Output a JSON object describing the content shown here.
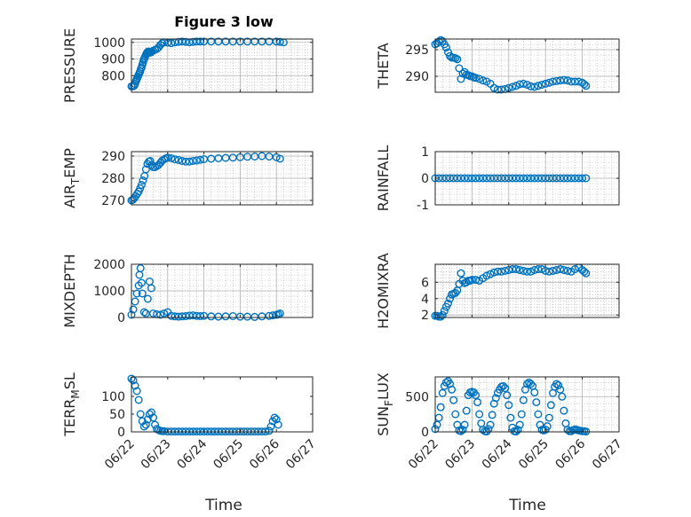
{
  "colors": {
    "marker": "#0072bd",
    "axis": "#262626",
    "grid": "#b0b0b0",
    "background": "#ffffff"
  },
  "figure": {
    "title": "Figure 3 low",
    "xlabel": "Time"
  },
  "chart_data": [
    {
      "type": "scatter",
      "id": "pressure",
      "title": "Figure 3 low",
      "ylabel": "PRESSURE",
      "xlabel": "",
      "xticks": [
        "06/22",
        "06/23",
        "06/24",
        "06/25",
        "06/26",
        "06/27"
      ],
      "show_xticks": false,
      "xlim": [
        0,
        5
      ],
      "ylim": [
        700,
        1020
      ],
      "yticks": [
        800,
        900,
        1000
      ],
      "grid": true,
      "minor_grid": true,
      "x": [
        0.0,
        0.04,
        0.08,
        0.1,
        0.12,
        0.14,
        0.16,
        0.18,
        0.2,
        0.22,
        0.24,
        0.26,
        0.28,
        0.3,
        0.32,
        0.34,
        0.36,
        0.38,
        0.4,
        0.42,
        0.44,
        0.46,
        0.48,
        0.5,
        0.52,
        0.54,
        0.56,
        0.6,
        0.65,
        0.7,
        0.75,
        0.8,
        0.85,
        0.9,
        1.0,
        1.1,
        1.2,
        1.3,
        1.4,
        1.5,
        1.6,
        1.7,
        1.8,
        1.9,
        2.0,
        2.2,
        2.4,
        2.6,
        2.8,
        3.0,
        3.2,
        3.4,
        3.6,
        3.8,
        4.0,
        4.1,
        4.2
      ],
      "y": [
        735,
        735,
        740,
        750,
        765,
        775,
        785,
        795,
        805,
        815,
        825,
        840,
        850,
        865,
        880,
        895,
        905,
        915,
        925,
        935,
        940,
        945,
        945,
        940,
        938,
        940,
        945,
        950,
        955,
        960,
        970,
        985,
        995,
        1000,
        998,
        995,
        1000,
        1003,
        1005,
        1003,
        1000,
        1003,
        1005,
        1005,
        1005,
        1005,
        1005,
        1005,
        1005,
        1005,
        1005,
        1005,
        1005,
        1005,
        1005,
        1003,
        1000
      ]
    },
    {
      "type": "scatter",
      "id": "theta",
      "title": "",
      "ylabel": "THETA",
      "xlabel": "",
      "xticks": [
        "06/22",
        "06/23",
        "06/24",
        "06/25",
        "06/26",
        "06/27"
      ],
      "show_xticks": false,
      "xlim": [
        0,
        5
      ],
      "ylim": [
        287,
        297
      ],
      "yticks": [
        290,
        295
      ],
      "grid": true,
      "minor_grid": true,
      "x": [
        0.0,
        0.05,
        0.1,
        0.15,
        0.2,
        0.25,
        0.3,
        0.35,
        0.4,
        0.45,
        0.5,
        0.55,
        0.6,
        0.65,
        0.7,
        0.75,
        0.8,
        0.85,
        0.9,
        0.95,
        1.0,
        1.05,
        1.1,
        1.2,
        1.3,
        1.4,
        1.5,
        1.6,
        1.7,
        1.8,
        1.9,
        2.0,
        2.1,
        2.2,
        2.3,
        2.4,
        2.5,
        2.6,
        2.7,
        2.8,
        2.9,
        3.0,
        3.1,
        3.2,
        3.3,
        3.4,
        3.5,
        3.6,
        3.7,
        3.8,
        3.9,
        4.0,
        4.05,
        4.1
      ],
      "y": [
        296,
        296.2,
        296.5,
        296.8,
        296.6,
        296,
        295.4,
        294.5,
        293.8,
        293.5,
        293.5,
        293.4,
        293.2,
        291.5,
        289.5,
        290.5,
        290.8,
        290.3,
        290.2,
        290,
        290,
        289.8,
        289.7,
        289.5,
        289.2,
        289.0,
        288.6,
        287.8,
        287.5,
        287.5,
        287.6,
        287.8,
        288.0,
        288.2,
        288.5,
        288.6,
        288.4,
        288.1,
        288.0,
        288.2,
        288.4,
        288.6,
        288.8,
        289.0,
        289.1,
        289.2,
        289.3,
        289.2,
        289.0,
        289.0,
        289.0,
        288.8,
        288.5,
        288.2
      ]
    },
    {
      "type": "scatter",
      "id": "air_temp",
      "title": "",
      "ylabel": "AIR_TEMP",
      "ylabel_main": "AIR",
      "ylabel_sub": "T",
      "ylabel_rest": "EMP",
      "xlabel": "",
      "xticks": [
        "06/22",
        "06/23",
        "06/24",
        "06/25",
        "06/26",
        "06/27"
      ],
      "show_xticks": false,
      "xlim": [
        0,
        5
      ],
      "ylim": [
        268,
        292
      ],
      "yticks": [
        270,
        280,
        290
      ],
      "grid": true,
      "minor_grid": true,
      "x": [
        0.0,
        0.04,
        0.08,
        0.12,
        0.16,
        0.2,
        0.24,
        0.28,
        0.32,
        0.36,
        0.4,
        0.44,
        0.48,
        0.52,
        0.56,
        0.6,
        0.65,
        0.7,
        0.75,
        0.8,
        0.85,
        0.9,
        0.95,
        1.0,
        1.1,
        1.2,
        1.3,
        1.4,
        1.5,
        1.6,
        1.7,
        1.8,
        1.9,
        2.0,
        2.2,
        2.4,
        2.6,
        2.8,
        3.0,
        3.2,
        3.4,
        3.6,
        3.8,
        4.0,
        4.1
      ],
      "y": [
        270,
        270.3,
        271,
        272,
        273,
        274,
        275.5,
        277,
        279,
        281,
        284,
        286.5,
        287.5,
        287.8,
        286,
        285,
        285,
        285.5,
        286,
        287,
        288,
        288.5,
        289,
        289.3,
        289,
        288.5,
        288.2,
        287.8,
        287.5,
        287.5,
        287.8,
        288,
        288.3,
        288.6,
        288.8,
        289,
        289.2,
        289.3,
        289.5,
        289.7,
        289.8,
        290,
        289.8,
        289.5,
        288.8
      ]
    },
    {
      "type": "scatter",
      "id": "rainfall",
      "title": "",
      "ylabel": "RAINFALL",
      "xlabel": "",
      "xticks": [
        "06/22",
        "06/23",
        "06/24",
        "06/25",
        "06/26",
        "06/27"
      ],
      "show_xticks": false,
      "xlim": [
        0,
        5
      ],
      "ylim": [
        -1,
        1
      ],
      "yticks": [
        -1,
        0,
        1
      ],
      "grid": true,
      "minor_grid": true,
      "x": [
        0.0,
        0.1,
        0.2,
        0.3,
        0.4,
        0.5,
        0.6,
        0.7,
        0.8,
        0.9,
        1.0,
        1.1,
        1.2,
        1.3,
        1.4,
        1.5,
        1.6,
        1.7,
        1.8,
        1.9,
        2.0,
        2.1,
        2.2,
        2.3,
        2.4,
        2.5,
        2.6,
        2.7,
        2.8,
        2.9,
        3.0,
        3.1,
        3.2,
        3.3,
        3.4,
        3.5,
        3.6,
        3.7,
        3.8,
        3.9,
        4.0,
        4.1
      ],
      "y": [
        0,
        0,
        0,
        0,
        0,
        0,
        0,
        0,
        0,
        0,
        0,
        0,
        0,
        0,
        0,
        0,
        0,
        0,
        0,
        0,
        0,
        0,
        0,
        0,
        0,
        0,
        0,
        0,
        0,
        0,
        0,
        0,
        0,
        0,
        0,
        0,
        0,
        0,
        0,
        0,
        0,
        0
      ]
    },
    {
      "type": "scatter",
      "id": "mixdepth",
      "title": "",
      "ylabel": "MIXDEPTH",
      "xlabel": "",
      "xticks": [
        "06/22",
        "06/23",
        "06/24",
        "06/25",
        "06/26",
        "06/27"
      ],
      "show_xticks": false,
      "xlim": [
        0,
        5
      ],
      "ylim": [
        0,
        2000
      ],
      "yticks": [
        0,
        1000,
        2000
      ],
      "grid": true,
      "minor_grid": true,
      "x": [
        0.0,
        0.05,
        0.1,
        0.15,
        0.2,
        0.22,
        0.25,
        0.28,
        0.3,
        0.35,
        0.4,
        0.45,
        0.5,
        0.55,
        0.6,
        0.7,
        0.8,
        0.9,
        1.0,
        1.1,
        1.2,
        1.3,
        1.4,
        1.5,
        1.6,
        1.7,
        1.8,
        1.9,
        2.0,
        2.2,
        2.4,
        2.6,
        2.8,
        3.0,
        3.2,
        3.4,
        3.6,
        3.8,
        3.9,
        4.0,
        4.05,
        4.1
      ],
      "y": [
        100,
        300,
        600,
        900,
        1200,
        1600,
        1850,
        1300,
        900,
        200,
        150,
        700,
        1350,
        1100,
        150,
        120,
        100,
        150,
        200,
        60,
        40,
        30,
        40,
        50,
        70,
        80,
        60,
        50,
        60,
        40,
        30,
        40,
        50,
        30,
        30,
        20,
        40,
        60,
        80,
        100,
        120,
        150
      ]
    },
    {
      "type": "scatter",
      "id": "h2omixra",
      "title": "",
      "ylabel": "H2OMIXRA",
      "xlabel": "",
      "xticks": [
        "06/22",
        "06/23",
        "06/24",
        "06/25",
        "06/26",
        "06/27"
      ],
      "show_xticks": false,
      "xlim": [
        0,
        5
      ],
      "ylim": [
        1.7,
        8.2
      ],
      "yticks": [
        2,
        4,
        6
      ],
      "grid": true,
      "minor_grid": true,
      "x": [
        0.0,
        0.05,
        0.1,
        0.15,
        0.2,
        0.25,
        0.3,
        0.35,
        0.4,
        0.45,
        0.5,
        0.55,
        0.6,
        0.65,
        0.7,
        0.75,
        0.8,
        0.85,
        0.9,
        0.95,
        1.0,
        1.1,
        1.2,
        1.3,
        1.4,
        1.5,
        1.6,
        1.7,
        1.8,
        1.9,
        2.0,
        2.1,
        2.2,
        2.3,
        2.4,
        2.5,
        2.6,
        2.7,
        2.8,
        2.9,
        3.0,
        3.1,
        3.2,
        3.3,
        3.4,
        3.5,
        3.6,
        3.7,
        3.8,
        3.9,
        4.0,
        4.05,
        4.1
      ],
      "y": [
        1.9,
        1.9,
        1.8,
        1.8,
        2.0,
        2.5,
        3.0,
        3.4,
        4.0,
        4.5,
        4.6,
        4.7,
        5.0,
        5.8,
        7.1,
        6.2,
        5.9,
        6.0,
        6.2,
        6.2,
        6.3,
        6.3,
        6.2,
        6.5,
        6.8,
        7.0,
        7.2,
        7.3,
        7.3,
        7.4,
        7.5,
        7.6,
        7.6,
        7.5,
        7.4,
        7.3,
        7.3,
        7.5,
        7.6,
        7.6,
        7.4,
        7.3,
        7.4,
        7.5,
        7.6,
        7.5,
        7.4,
        7.3,
        7.6,
        7.8,
        7.5,
        7.3,
        7.1
      ]
    },
    {
      "type": "scatter",
      "id": "terr_msl",
      "title": "",
      "ylabel": "TERR_MSL",
      "ylabel_main": "TERR",
      "ylabel_sub": "M",
      "ylabel_rest": "SL",
      "xlabel": "Time",
      "xticks": [
        "06/22",
        "06/23",
        "06/24",
        "06/25",
        "06/26",
        "06/27"
      ],
      "show_xticks": true,
      "xlim": [
        0,
        5
      ],
      "ylim": [
        0,
        155
      ],
      "yticks": [
        0,
        50,
        100
      ],
      "grid": false,
      "minor_grid": false,
      "x": [
        0.0,
        0.05,
        0.1,
        0.15,
        0.2,
        0.25,
        0.3,
        0.35,
        0.4,
        0.45,
        0.5,
        0.55,
        0.6,
        0.65,
        0.7,
        0.75,
        0.8,
        0.85,
        0.9,
        1.0,
        1.1,
        1.2,
        1.3,
        1.4,
        1.5,
        1.6,
        1.7,
        1.8,
        1.9,
        2.0,
        2.1,
        2.2,
        2.3,
        2.4,
        2.5,
        2.6,
        2.7,
        2.8,
        2.9,
        3.0,
        3.1,
        3.2,
        3.3,
        3.4,
        3.5,
        3.6,
        3.7,
        3.8,
        3.85,
        3.9,
        3.95,
        4.0,
        4.05
      ],
      "y": [
        150,
        145,
        130,
        115,
        90,
        50,
        30,
        15,
        20,
        35,
        50,
        55,
        40,
        20,
        8,
        5,
        3,
        2,
        2,
        1,
        1,
        1,
        1,
        1,
        1,
        1,
        1,
        1,
        1,
        1,
        1,
        1,
        1,
        1,
        1,
        1,
        1,
        1,
        1,
        1,
        1,
        1,
        1,
        1,
        1,
        1,
        1,
        3,
        15,
        30,
        40,
        35,
        20
      ]
    },
    {
      "type": "scatter",
      "id": "sun_flux",
      "title": "",
      "ylabel": "SUN_FLUX",
      "ylabel_main": "SUN",
      "ylabel_sub": "F",
      "ylabel_rest": "LUX",
      "xlabel": "Time",
      "xticks": [
        "06/22",
        "06/23",
        "06/24",
        "06/25",
        "06/26",
        "06/27"
      ],
      "show_xticks": true,
      "xlim": [
        0,
        5
      ],
      "ylim": [
        0,
        780
      ],
      "yticks": [
        0,
        500
      ],
      "grid": true,
      "minor_grid": true,
      "x": [
        0.0,
        0.05,
        0.1,
        0.15,
        0.2,
        0.25,
        0.3,
        0.35,
        0.4,
        0.45,
        0.5,
        0.55,
        0.6,
        0.65,
        0.7,
        0.75,
        0.8,
        0.85,
        0.9,
        0.95,
        1.0,
        1.05,
        1.1,
        1.15,
        1.2,
        1.25,
        1.3,
        1.35,
        1.4,
        1.45,
        1.5,
        1.55,
        1.6,
        1.65,
        1.7,
        1.75,
        1.8,
        1.85,
        1.9,
        1.95,
        2.0,
        2.05,
        2.1,
        2.15,
        2.2,
        2.25,
        2.3,
        2.35,
        2.4,
        2.45,
        2.5,
        2.55,
        2.6,
        2.65,
        2.7,
        2.75,
        2.8,
        2.85,
        2.9,
        2.95,
        3.0,
        3.05,
        3.1,
        3.15,
        3.2,
        3.25,
        3.3,
        3.35,
        3.4,
        3.45,
        3.5,
        3.55,
        3.6,
        3.65,
        3.7,
        3.75,
        3.8,
        3.85,
        3.9,
        3.95,
        4.0,
        4.05,
        4.1
      ],
      "y": [
        40,
        100,
        200,
        350,
        550,
        650,
        700,
        720,
        680,
        600,
        450,
        250,
        100,
        20,
        10,
        30,
        100,
        300,
        520,
        560,
        570,
        560,
        520,
        420,
        250,
        120,
        30,
        10,
        5,
        40,
        100,
        240,
        400,
        480,
        550,
        600,
        640,
        650,
        620,
        520,
        380,
        200,
        60,
        10,
        5,
        30,
        100,
        250,
        450,
        600,
        680,
        700,
        680,
        650,
        560,
        420,
        250,
        100,
        30,
        20,
        30,
        80,
        200,
        380,
        550,
        640,
        680,
        660,
        600,
        500,
        300,
        120,
        30,
        10,
        10,
        25,
        35,
        30,
        20,
        15,
        10,
        10,
        5
      ]
    }
  ]
}
